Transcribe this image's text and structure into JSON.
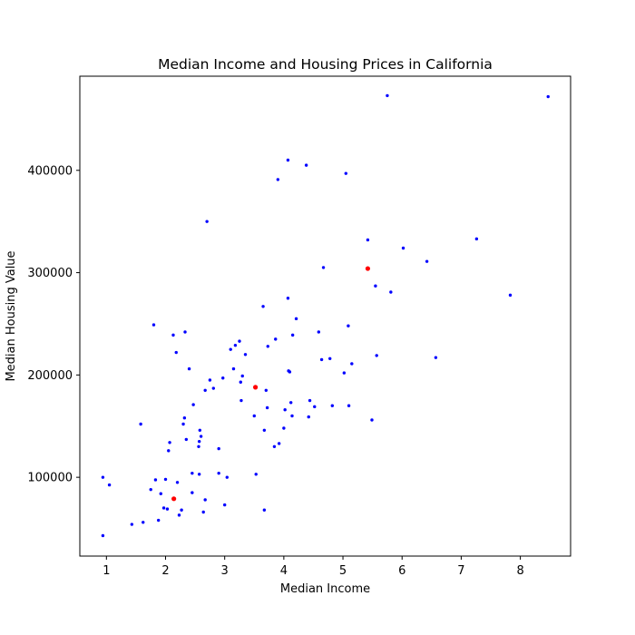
{
  "chart_data": {
    "type": "scatter",
    "title": "Median Income and Housing Prices in California",
    "xlabel": "Median Income",
    "ylabel": "Median Housing Value",
    "xlim": [
      0.55,
      8.85
    ],
    "ylim": [
      23000,
      492000
    ],
    "xticks": [
      1,
      2,
      3,
      4,
      5,
      6,
      7,
      8
    ],
    "yticks": [
      100000,
      200000,
      300000,
      400000
    ],
    "ytick_labels": [
      "100000",
      "200000",
      "300000",
      "400000"
    ],
    "grid": false,
    "legend": "none",
    "series": [
      {
        "color": "#0000ff",
        "x": [
          0.94,
          0.94,
          1.05,
          1.43,
          1.58,
          1.62,
          1.75,
          1.8,
          1.83,
          1.88,
          1.92,
          1.97,
          2.0,
          2.03,
          2.05,
          2.07,
          2.13,
          2.18,
          2.2,
          2.23,
          2.27,
          2.3,
          2.32,
          2.33,
          2.35,
          2.4,
          2.45,
          2.45,
          2.47,
          2.56,
          2.57,
          2.57,
          2.58,
          2.6,
          2.64,
          2.67,
          2.67,
          2.7,
          2.75,
          2.81,
          2.9,
          2.9,
          2.97,
          3.0,
          3.04,
          3.1,
          3.15,
          3.18,
          3.25,
          3.27,
          3.28,
          3.3,
          3.35,
          3.5,
          3.53,
          3.65,
          3.67,
          3.67,
          3.7,
          3.72,
          3.73,
          3.84,
          3.86,
          3.9,
          3.92,
          4.0,
          4.02,
          4.07,
          4.07,
          4.08,
          4.1,
          4.12,
          4.14,
          4.15,
          4.21,
          4.38,
          4.42,
          4.44,
          4.52,
          4.59,
          4.64,
          4.67,
          4.78,
          4.82,
          5.02,
          5.05,
          5.09,
          5.1,
          5.15,
          5.42,
          5.49,
          5.55,
          5.57,
          5.75,
          5.81,
          6.02,
          6.42,
          6.57,
          7.26,
          7.83,
          8.47
        ],
        "y": [
          100000,
          43000,
          92500,
          54000,
          152000,
          56000,
          88000,
          249000,
          97500,
          58000,
          84000,
          70000,
          98000,
          69000,
          126000,
          134000,
          239000,
          222000,
          95000,
          63000,
          68000,
          152000,
          158000,
          242000,
          137000,
          206000,
          104000,
          85000,
          171000,
          130000,
          103000,
          135000,
          146000,
          140000,
          66000,
          78000,
          185000,
          350000,
          195000,
          187000,
          104000,
          128000,
          197000,
          73000,
          100000,
          225000,
          206000,
          229000,
          233000,
          193000,
          175000,
          199000,
          220000,
          160000,
          103000,
          267000,
          68000,
          146000,
          185000,
          168000,
          228000,
          130000,
          235000,
          391000,
          133000,
          148000,
          166000,
          275000,
          410000,
          204000,
          203000,
          173000,
          160000,
          239000,
          255000,
          405000,
          159000,
          175000,
          169000,
          242000,
          215000,
          305000,
          216000,
          170000,
          202000,
          397000,
          248000,
          170000,
          211000,
          332000,
          156000,
          287000,
          219000,
          473000,
          281000,
          324000,
          311000,
          217000,
          333000,
          278000,
          472000
        ]
      },
      {
        "color": "#ff0000",
        "x": [
          2.14,
          3.52,
          5.42
        ],
        "y": [
          79000,
          188000,
          304000
        ]
      }
    ]
  }
}
